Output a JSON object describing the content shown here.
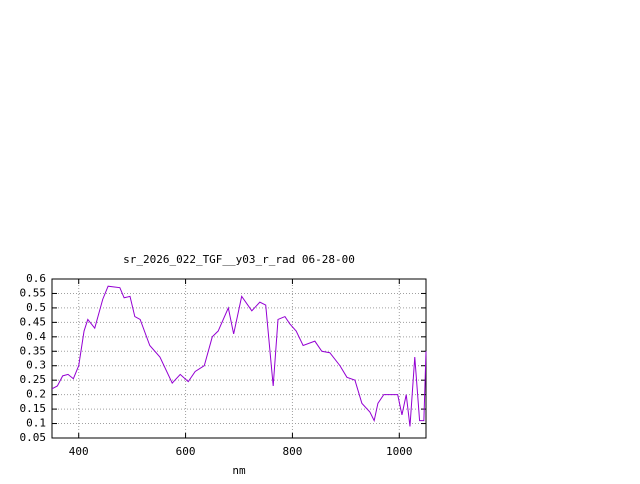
{
  "chart_data": {
    "type": "line",
    "title": "sr_2026_022_TGF__y03_r_rad 06-28-00",
    "x_label": "nm",
    "x": [
      350,
      360,
      370,
      380,
      390,
      400,
      410,
      417,
      430,
      445,
      455,
      477,
      485,
      496,
      505,
      515,
      533,
      552,
      575,
      590,
      605,
      618,
      635,
      650,
      661,
      680,
      690,
      705,
      724,
      739,
      750,
      758,
      764,
      773,
      786,
      795,
      807,
      820,
      842,
      855,
      870,
      889,
      902,
      917,
      930,
      945,
      953,
      960,
      971,
      986,
      997,
      1005,
      1013,
      1020,
      1029,
      1038,
      1046,
      1050
    ],
    "series": [
      {
        "name": "sr_2026_022_TGF__y03_r_rad",
        "color": "#9400d3",
        "values": [
          0.22,
          0.23,
          0.265,
          0.27,
          0.255,
          0.3,
          0.42,
          0.46,
          0.43,
          0.53,
          0.575,
          0.57,
          0.535,
          0.54,
          0.47,
          0.46,
          0.37,
          0.33,
          0.24,
          0.27,
          0.245,
          0.28,
          0.3,
          0.4,
          0.42,
          0.5,
          0.41,
          0.54,
          0.49,
          0.52,
          0.51,
          0.35,
          0.23,
          0.46,
          0.47,
          0.445,
          0.42,
          0.37,
          0.385,
          0.35,
          0.345,
          0.3,
          0.26,
          0.25,
          0.17,
          0.14,
          0.11,
          0.17,
          0.2,
          0.2,
          0.2,
          0.13,
          0.2,
          0.09,
          0.33,
          0.11,
          0.11,
          0.35
        ]
      }
    ],
    "xlim": [
      350,
      1050
    ],
    "xticks": [
      400,
      600,
      800,
      1000
    ],
    "ylim": [
      0.05,
      0.6
    ],
    "yticks": [
      0.05,
      0.1,
      0.15,
      0.2,
      0.25,
      0.3,
      0.35,
      0.4,
      0.45,
      0.5,
      0.55,
      0.6
    ],
    "grid": true
  }
}
